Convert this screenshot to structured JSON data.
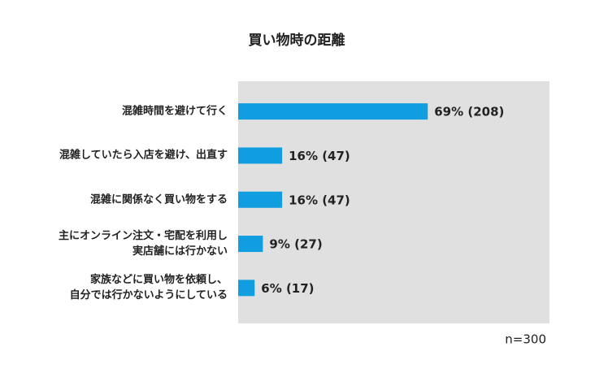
{
  "chart_data": {
    "type": "bar",
    "orientation": "horizontal",
    "title": "買い物時の距離",
    "categories": [
      "混雑時間を避けて行く",
      "混雑していたら入店を避け、出直す",
      "混雑に関係なく買い物をする",
      "主にオンライン注文・宅配を利用し\n実店舗には行かない",
      "家族などに買い物を依頼し、\n自分では行かないようにしている"
    ],
    "values": [
      69,
      16,
      16,
      9,
      6
    ],
    "value_labels": [
      "69% (208)",
      "16% (47)",
      "16% (47)",
      "9% (27)",
      "6% (17)"
    ],
    "color": "#109ee0",
    "annotation": "n=300"
  }
}
